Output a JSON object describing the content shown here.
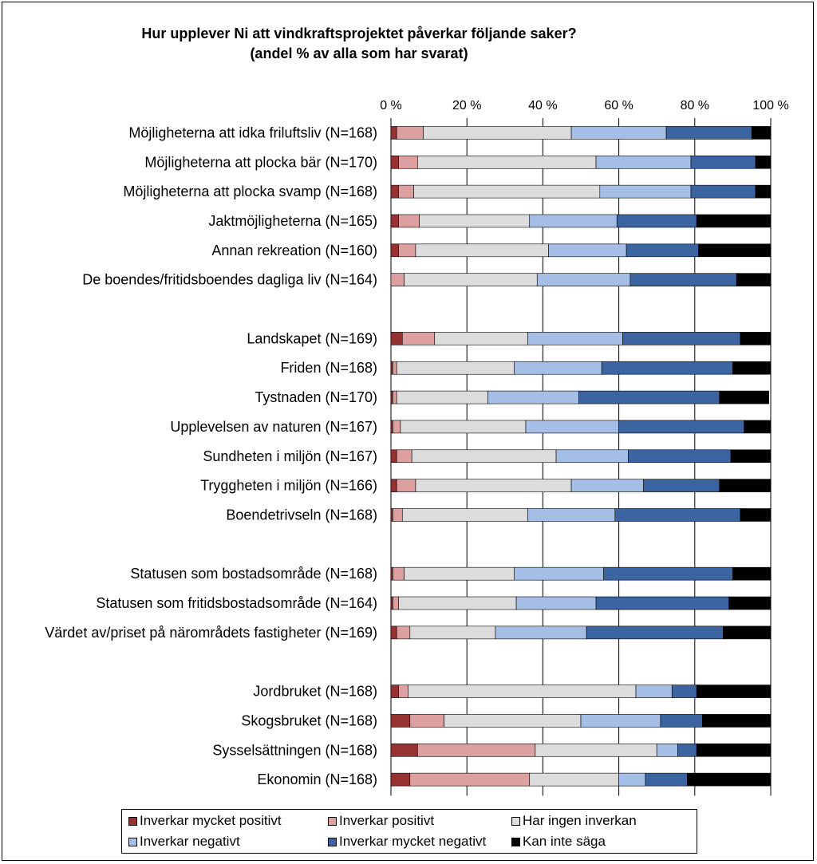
{
  "colors": {
    "very_positive": "#963232",
    "positive": "#dca0a0",
    "no_effect": "#dcdcdc",
    "negative": "#a5bee6",
    "very_negative": "#3c64a0",
    "cannot_say": "#000000"
  },
  "chart_data": {
    "type": "bar",
    "orientation": "horizontal",
    "stacked": true,
    "title": "Hur upplever Ni att vindkraftsprojektet påverkar följande saker?",
    "subtitle": "(andel  % av alla som har svarat)",
    "xlim": [
      0,
      100
    ],
    "x_ticks": [
      "0 %",
      "20 %",
      "40 %",
      "60 %",
      "80 %",
      "100 %"
    ],
    "grid": true,
    "legend_position": "bottom",
    "categories": [
      "Möjligheterna att idka friluftsliv (N=168)",
      "Möjligheterna att plocka bär (N=170)",
      "Möjligheterna att plocka svamp (N=168)",
      "Jaktmöjligheterna (N=165)",
      "Annan rekreation (N=160)",
      "De boendes/fritidsboendes dagliga liv (N=164)",
      "",
      "Landskapet (N=169)",
      "Friden (N=168)",
      "Tystnaden (N=170)",
      "Upplevelsen av naturen (N=167)",
      "Sundheten i miljön (N=167)",
      "Tryggheten i miljön (N=166)",
      "Boendetrivseln (N=168)",
      "",
      "Statusen som bostadsområde (N=168)",
      "Statusen som fritidsbostadsområde (N=164)",
      "Värdet av/priset på närområdets fastigheter (N=169)",
      "",
      "Jordbruket (N=168)",
      "Skogsbruket (N=168)",
      "Sysselsättningen (N=168)",
      "Ekonomin (N=168)"
    ],
    "series": [
      {
        "name": "Inverkar mycket positivt",
        "values": [
          1.5,
          2,
          2,
          2,
          2,
          0,
          null,
          3,
          0.5,
          0.5,
          0.5,
          1.5,
          1.5,
          0.5,
          null,
          0.5,
          0.5,
          1.5,
          null,
          2,
          5,
          7,
          5
        ]
      },
      {
        "name": "Inverkar positivt",
        "values": [
          7,
          5,
          4,
          5.5,
          4.5,
          3.5,
          null,
          8.5,
          1,
          1,
          2,
          4,
          5,
          2.5,
          null,
          3,
          1.5,
          3.5,
          null,
          2.5,
          9,
          31,
          31.5
        ]
      },
      {
        "name": "Har ingen inverkan",
        "values": [
          39,
          47,
          49,
          29,
          35,
          35,
          null,
          24.5,
          31,
          24,
          33,
          38,
          41,
          33,
          null,
          29,
          31,
          22.5,
          null,
          60,
          36,
          32,
          23.5
        ]
      },
      {
        "name": "Inverkar negativt",
        "values": [
          25,
          25,
          24,
          23,
          20.5,
          24.5,
          null,
          25,
          23,
          24,
          24.5,
          19,
          19,
          23,
          null,
          23.5,
          21,
          24,
          null,
          9.5,
          21,
          5.5,
          7
        ]
      },
      {
        "name": "Inverkar mycket negativt",
        "values": [
          22.5,
          17,
          17,
          21,
          19,
          28,
          null,
          31,
          34.5,
          37,
          33,
          27,
          20,
          33,
          null,
          34,
          35,
          36,
          null,
          6.5,
          11,
          5,
          11
        ]
      },
      {
        "name": "Kan inte säga",
        "values": [
          5,
          4,
          4,
          19.5,
          19,
          9,
          null,
          8,
          10,
          13,
          7,
          10.5,
          13.5,
          8,
          null,
          10,
          11,
          12.5,
          null,
          19.5,
          18,
          19.5,
          22
        ]
      }
    ]
  }
}
